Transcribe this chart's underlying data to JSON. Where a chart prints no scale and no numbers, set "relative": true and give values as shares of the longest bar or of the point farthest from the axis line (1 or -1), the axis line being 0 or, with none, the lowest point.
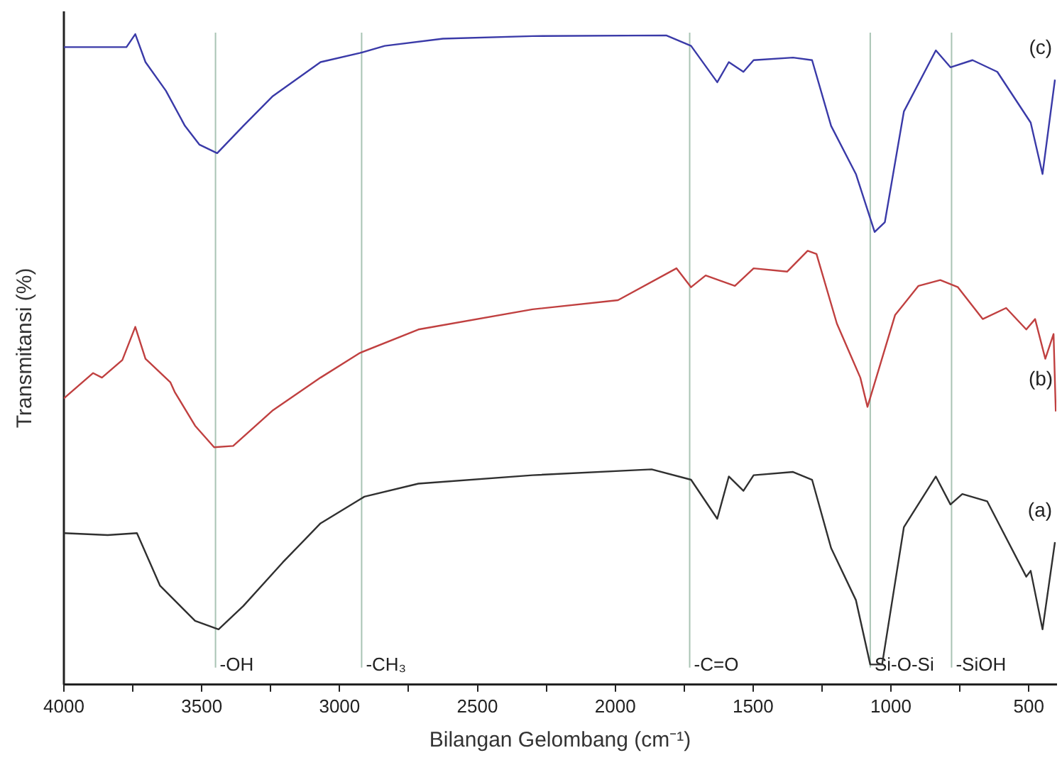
{
  "chart_data": {
    "type": "line",
    "relative": true,
    "xlabel": "Bilangan Gelombang (cm⁻¹)",
    "ylabel": "Transmitansi (%)",
    "legend": false,
    "grid": false,
    "marker": "none",
    "line_style": "solid",
    "xlim": [
      4000,
      400
    ],
    "xticks": [
      4000,
      {
        "value": 3750,
        "label": null
      },
      3500,
      {
        "value": 3250,
        "label": null
      },
      3000,
      {
        "value": 2750,
        "label": null
      },
      2500,
      {
        "value": 2250,
        "label": null
      },
      2000,
      {
        "value": 1750,
        "label": null
      },
      1500,
      {
        "value": 1250,
        "label": null
      },
      1000,
      {
        "value": 750,
        "label": null
      },
      500
    ],
    "series": [
      {
        "name": "(c)",
        "color": "#3a3aa8",
        "x": [
          4000,
          3862,
          3773,
          3741,
          3704,
          3630,
          3561,
          3508,
          3444,
          3349,
          3244,
          3069,
          2926,
          2836,
          2625,
          2300,
          1815,
          1725,
          1630,
          1588,
          1535,
          1498,
          1355,
          1286,
          1217,
          1127,
          1059,
          1022,
          953,
          837,
          784,
          704,
          614,
          493,
          450,
          405
        ],
        "values": [
          0.98,
          0.98,
          0.98,
          1.0,
          0.957,
          0.913,
          0.859,
          0.83,
          0.817,
          0.859,
          0.904,
          0.957,
          0.971,
          0.982,
          0.993,
          0.997,
          0.998,
          0.982,
          0.926,
          0.957,
          0.942,
          0.96,
          0.964,
          0.96,
          0.859,
          0.785,
          0.696,
          0.711,
          0.881,
          0.975,
          0.949,
          0.96,
          0.942,
          0.864,
          0.785,
          0.93
        ]
      },
      {
        "name": "(b)",
        "color": "#c04040",
        "x": [
          4000,
          3894,
          3862,
          3788,
          3741,
          3704,
          3614,
          3598,
          3524,
          3455,
          3386,
          3244,
          3069,
          2926,
          2714,
          2300,
          1990,
          1778,
          1725,
          1672,
          1566,
          1498,
          1376,
          1302,
          1270,
          1196,
          1111,
          1085,
          985,
          900,
          821,
          757,
          667,
          582,
          509,
          477,
          440,
          410,
          402
        ],
        "values": [
          0.44,
          0.479,
          0.472,
          0.499,
          0.55,
          0.501,
          0.465,
          0.45,
          0.398,
          0.365,
          0.367,
          0.421,
          0.472,
          0.51,
          0.546,
          0.577,
          0.591,
          0.64,
          0.611,
          0.629,
          0.613,
          0.64,
          0.635,
          0.667,
          0.662,
          0.555,
          0.472,
          0.427,
          0.568,
          0.613,
          0.622,
          0.611,
          0.562,
          0.579,
          0.546,
          0.562,
          0.501,
          0.539,
          0.42
        ]
      },
      {
        "name": "(a)",
        "color": "#303030",
        "x": [
          4000,
          3841,
          3735,
          3651,
          3524,
          3439,
          3349,
          3206,
          3069,
          2910,
          2714,
          2300,
          1868,
          1725,
          1630,
          1588,
          1535,
          1498,
          1355,
          1286,
          1217,
          1127,
          1075,
          1032,
          953,
          837,
          784,
          741,
          651,
          509,
          493,
          450,
          405
        ],
        "values": [
          0.233,
          0.23,
          0.233,
          0.152,
          0.098,
          0.085,
          0.121,
          0.188,
          0.248,
          0.289,
          0.309,
          0.322,
          0.331,
          0.315,
          0.255,
          0.32,
          0.298,
          0.322,
          0.327,
          0.315,
          0.21,
          0.13,
          0.031,
          0.031,
          0.242,
          0.32,
          0.277,
          0.293,
          0.282,
          0.166,
          0.175,
          0.085,
          0.219
        ]
      }
    ],
    "ref_lines": [
      {
        "axis": "x",
        "value": 3450,
        "color": "#a9c4b4",
        "label": "-OH"
      },
      {
        "axis": "x",
        "value": 2920,
        "color": "#a9c4b4",
        "label": "-CH₃"
      },
      {
        "axis": "x",
        "value": 1730,
        "color": "#a9c4b4",
        "label": "-C=O"
      },
      {
        "axis": "x",
        "value": 1075,
        "color": "#a9c4b4",
        "label": "Si-O-Si"
      },
      {
        "axis": "x",
        "value": 780,
        "color": "#a9c4b4",
        "label": "-SiOH"
      }
    ]
  }
}
